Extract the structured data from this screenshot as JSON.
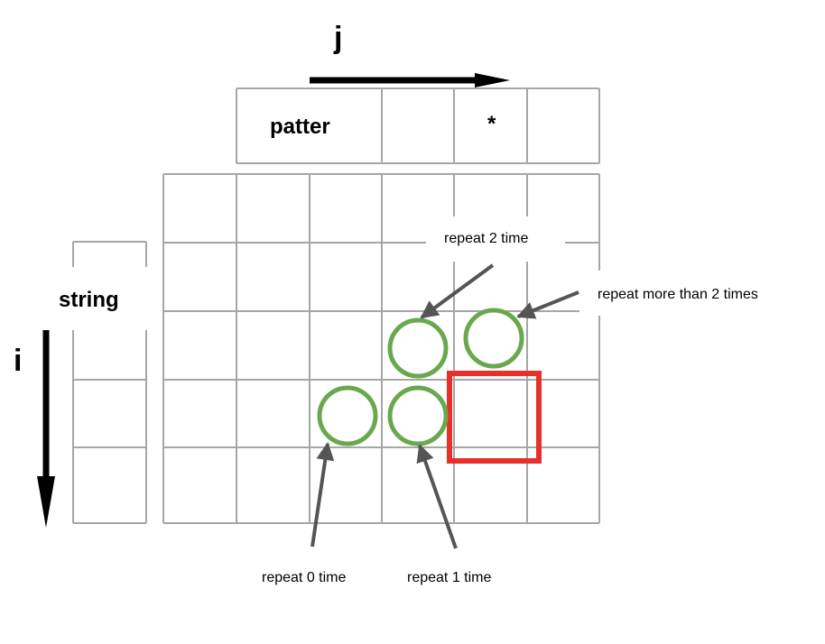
{
  "axes": {
    "j": "j",
    "i": "i"
  },
  "pattern": {
    "label": "patter",
    "star": "*"
  },
  "string": {
    "label": "string"
  },
  "annotations": {
    "repeat_2": "repeat 2 time",
    "repeat_more": "repeat more than 2 times",
    "repeat_0": "repeat 0 time",
    "repeat_1": "repeat 1 time"
  },
  "colors": {
    "grid": "#a6a6a6",
    "circle": "#6aa84f",
    "highlight": "#e8302a",
    "arrow": "#555555",
    "axis_arrow": "#000000"
  }
}
